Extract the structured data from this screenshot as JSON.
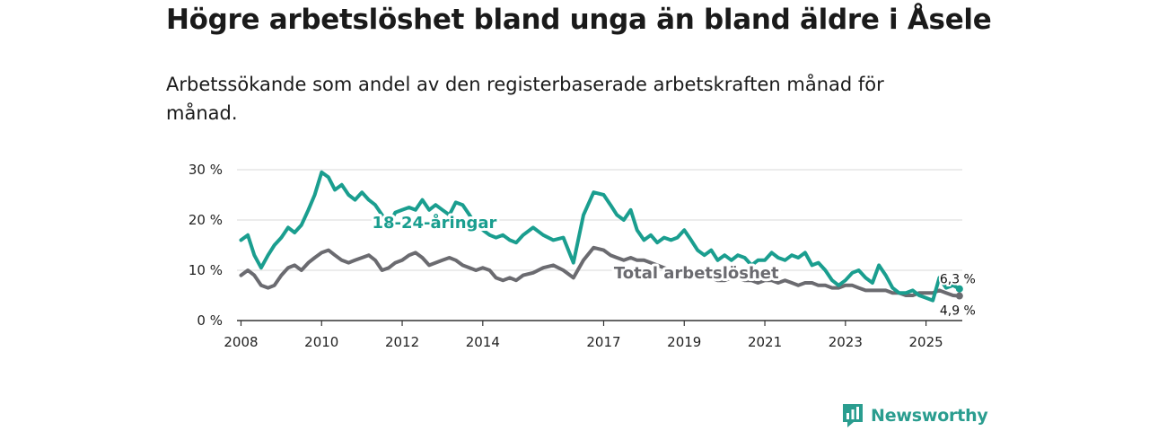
{
  "title": "Högre arbetslöshet bland unga än bland äldre i Åsele",
  "subtitle": "Arbetssökande som andel av den registerbaserade arbetskraften månad för månad.",
  "brand": "Newsworthy",
  "colors": {
    "youth": "#1a9e8f",
    "total": "#6b6b70",
    "grid": "#d9d9d9",
    "axis": "#333333",
    "brand": "#2a9d8f"
  },
  "chart_data": {
    "type": "line",
    "title": "Högre arbetslöshet bland unga än bland äldre i Åsele",
    "xlabel": "",
    "ylabel": "",
    "xlim": [
      2007.9,
      2025.9
    ],
    "ylim": [
      0,
      30
    ],
    "y_ticks": [
      0,
      10,
      20,
      30
    ],
    "y_tick_labels": [
      "0 %",
      "10 %",
      "20 %",
      "30 %"
    ],
    "x_ticks": [
      2008,
      2010,
      2012,
      2014,
      2017,
      2019,
      2021,
      2023,
      2025
    ],
    "x_tick_labels": [
      "2008",
      "2010",
      "2012",
      "2014",
      "2017",
      "2019",
      "2021",
      "2023",
      "2025"
    ],
    "grid": true,
    "series": [
      {
        "name": "18-24-åringar",
        "label": "18-24-åringar",
        "end_label": "6,3 %",
        "x": [
          2008.0,
          2008.17,
          2008.33,
          2008.5,
          2008.67,
          2008.83,
          2009.0,
          2009.17,
          2009.33,
          2009.5,
          2009.67,
          2009.83,
          2010.0,
          2010.17,
          2010.33,
          2010.5,
          2010.67,
          2010.83,
          2011.0,
          2011.17,
          2011.33,
          2011.5,
          2011.67,
          2011.83,
          2012.0,
          2012.17,
          2012.33,
          2012.5,
          2012.67,
          2012.83,
          2013.0,
          2013.17,
          2013.33,
          2013.5,
          2013.67,
          2013.83,
          2014.0,
          2014.17,
          2014.33,
          2014.5,
          2014.67,
          2014.83,
          2015.0,
          2015.25,
          2015.5,
          2015.75,
          2016.0,
          2016.25,
          2016.5,
          2016.75,
          2017.0,
          2017.17,
          2017.33,
          2017.5,
          2017.67,
          2017.83,
          2018.0,
          2018.17,
          2018.33,
          2018.5,
          2018.67,
          2018.83,
          2019.0,
          2019.17,
          2019.33,
          2019.5,
          2019.67,
          2019.83,
          2020.0,
          2020.17,
          2020.33,
          2020.5,
          2020.67,
          2020.83,
          2021.0,
          2021.17,
          2021.33,
          2021.5,
          2021.67,
          2021.83,
          2022.0,
          2022.17,
          2022.33,
          2022.5,
          2022.67,
          2022.83,
          2023.0,
          2023.17,
          2023.33,
          2023.5,
          2023.67,
          2023.83,
          2024.0,
          2024.17,
          2024.33,
          2024.5,
          2024.67,
          2024.83,
          2025.0,
          2025.17,
          2025.33,
          2025.5,
          2025.67,
          2025.83
        ],
        "y": [
          16.0,
          17.0,
          13.0,
          10.5,
          13.0,
          15.0,
          16.5,
          18.5,
          17.5,
          19.0,
          22.0,
          25.0,
          29.5,
          28.5,
          26.0,
          27.0,
          25.0,
          24.0,
          25.5,
          24.0,
          23.0,
          21.0,
          19.0,
          21.5,
          22.0,
          22.5,
          22.0,
          24.0,
          22.0,
          23.0,
          22.0,
          21.0,
          23.5,
          23.0,
          21.0,
          19.0,
          18.0,
          17.0,
          16.5,
          17.0,
          16.0,
          15.5,
          17.0,
          18.5,
          17.0,
          16.0,
          16.5,
          11.5,
          21.0,
          25.5,
          25.0,
          23.0,
          21.0,
          20.0,
          22.0,
          18.0,
          16.0,
          17.0,
          15.5,
          16.5,
          16.0,
          16.5,
          18.0,
          16.0,
          14.0,
          13.0,
          14.0,
          12.0,
          13.0,
          12.0,
          13.0,
          12.5,
          11.0,
          12.0,
          12.0,
          13.5,
          12.5,
          12.0,
          13.0,
          12.5,
          13.5,
          11.0,
          11.5,
          10.0,
          8.0,
          7.0,
          8.0,
          9.5,
          10.0,
          8.5,
          7.5,
          11.0,
          9.0,
          6.5,
          5.5,
          5.5,
          6.0,
          5.0,
          4.5,
          4.0,
          8.5,
          6.5,
          7.0,
          6.3
        ]
      },
      {
        "name": "Total arbetslöshet",
        "label": "Total arbetslöshet",
        "end_label": "4,9 %",
        "x": [
          2008.0,
          2008.17,
          2008.33,
          2008.5,
          2008.67,
          2008.83,
          2009.0,
          2009.17,
          2009.33,
          2009.5,
          2009.67,
          2009.83,
          2010.0,
          2010.17,
          2010.33,
          2010.5,
          2010.67,
          2010.83,
          2011.0,
          2011.17,
          2011.33,
          2011.5,
          2011.67,
          2011.83,
          2012.0,
          2012.17,
          2012.33,
          2012.5,
          2012.67,
          2012.83,
          2013.0,
          2013.17,
          2013.33,
          2013.5,
          2013.67,
          2013.83,
          2014.0,
          2014.17,
          2014.33,
          2014.5,
          2014.67,
          2014.83,
          2015.0,
          2015.25,
          2015.5,
          2015.75,
          2016.0,
          2016.25,
          2016.5,
          2016.75,
          2017.0,
          2017.17,
          2017.33,
          2017.5,
          2017.67,
          2017.83,
          2018.0,
          2018.17,
          2018.33,
          2018.5,
          2018.67,
          2018.83,
          2019.0,
          2019.17,
          2019.33,
          2019.5,
          2019.67,
          2019.83,
          2020.0,
          2020.17,
          2020.33,
          2020.5,
          2020.67,
          2020.83,
          2021.0,
          2021.17,
          2021.33,
          2021.5,
          2021.67,
          2021.83,
          2022.0,
          2022.17,
          2022.33,
          2022.5,
          2022.67,
          2022.83,
          2023.0,
          2023.17,
          2023.33,
          2023.5,
          2023.67,
          2023.83,
          2024.0,
          2024.17,
          2024.33,
          2024.5,
          2024.67,
          2024.83,
          2025.0,
          2025.17,
          2025.33,
          2025.5,
          2025.67,
          2025.83
        ],
        "y": [
          9.0,
          10.0,
          9.0,
          7.0,
          6.5,
          7.0,
          9.0,
          10.5,
          11.0,
          10.0,
          11.5,
          12.5,
          13.5,
          14.0,
          13.0,
          12.0,
          11.5,
          12.0,
          12.5,
          13.0,
          12.0,
          10.0,
          10.5,
          11.5,
          12.0,
          13.0,
          13.5,
          12.5,
          11.0,
          11.5,
          12.0,
          12.5,
          12.0,
          11.0,
          10.5,
          10.0,
          10.5,
          10.0,
          8.5,
          8.0,
          8.5,
          8.0,
          9.0,
          9.5,
          10.5,
          11.0,
          10.0,
          8.5,
          12.0,
          14.5,
          14.0,
          13.0,
          12.5,
          12.0,
          12.5,
          12.0,
          12.0,
          11.5,
          11.0,
          10.5,
          10.0,
          9.5,
          10.0,
          9.5,
          9.0,
          8.5,
          8.5,
          8.0,
          8.0,
          8.5,
          8.5,
          8.0,
          8.0,
          7.5,
          8.0,
          8.0,
          7.5,
          8.0,
          7.5,
          7.0,
          7.5,
          7.5,
          7.0,
          7.0,
          6.5,
          6.5,
          7.0,
          7.0,
          6.5,
          6.0,
          6.0,
          6.0,
          6.0,
          5.5,
          5.5,
          5.0,
          5.0,
          5.5,
          5.5,
          5.5,
          6.0,
          5.5,
          5.0,
          4.9
        ]
      }
    ]
  }
}
